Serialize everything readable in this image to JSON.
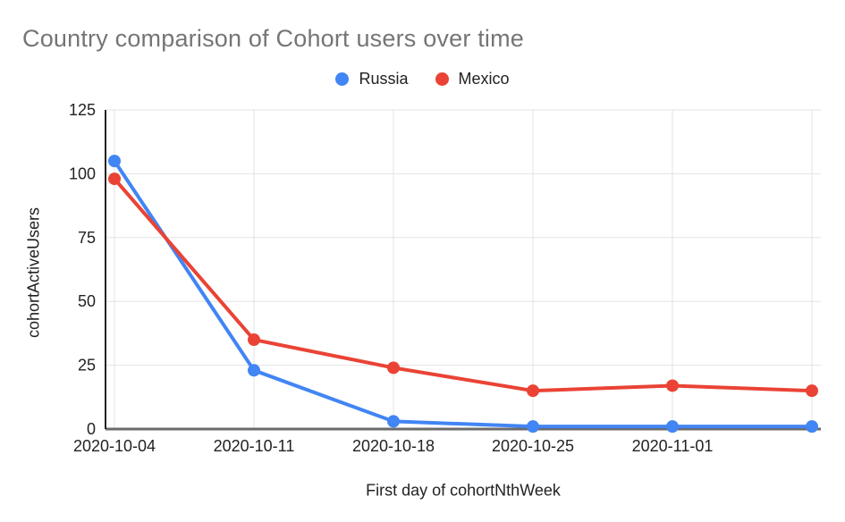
{
  "chart_data": {
    "type": "line",
    "title": "Country comparison of Cohort users over time",
    "xlabel": "First day of cohortNthWeek",
    "ylabel": "cohortActiveUsers",
    "categories": [
      "2020-10-04",
      "2020-10-11",
      "2020-10-18",
      "2020-10-25",
      "2020-11-01",
      ""
    ],
    "series": [
      {
        "name": "Russia",
        "color": "#4285f4",
        "values": [
          105,
          23,
          3,
          1,
          1,
          1
        ]
      },
      {
        "name": "Mexico",
        "color": "#ea4335",
        "values": [
          98,
          35,
          24,
          15,
          17,
          15
        ]
      }
    ],
    "ylim": [
      0,
      125
    ],
    "yticks": [
      0,
      25,
      50,
      75,
      100,
      125
    ],
    "grid": true,
    "legend_position": "top",
    "point_style": "circle"
  },
  "colors": {
    "title_text": "#757575",
    "axis_text": "#222222",
    "gridline": "#e3e3e3",
    "x_axis_line": "#6b6b6b",
    "y_axis_line": "#222222"
  }
}
